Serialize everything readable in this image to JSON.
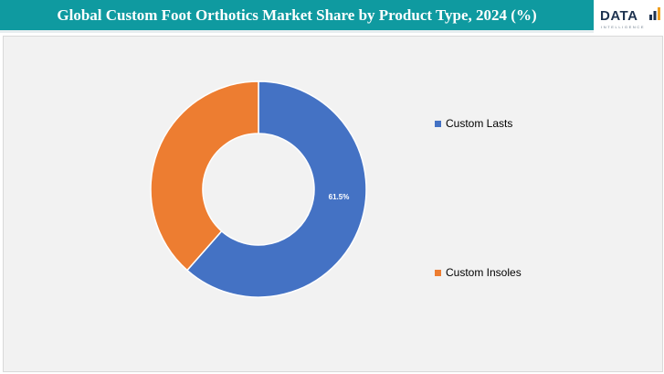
{
  "header": {
    "title": "Global Custom Foot Orthotics Market Share by Product Type, 2024 (%)"
  },
  "logo": {
    "word": "DATA",
    "subtitle": "INTELLIGENCE"
  },
  "chart_data": {
    "type": "pie",
    "variant": "donut",
    "title": "Global Custom Foot Orthotics Market Share by Product Type, 2024 (%)",
    "categories": [
      "Custom Lasts",
      "Custom Insoles"
    ],
    "values": [
      61.5,
      38.5
    ],
    "data_labels": [
      "61.5%",
      ""
    ],
    "colors": [
      "#4472c4",
      "#ed7d31"
    ],
    "legend_position": "right"
  }
}
